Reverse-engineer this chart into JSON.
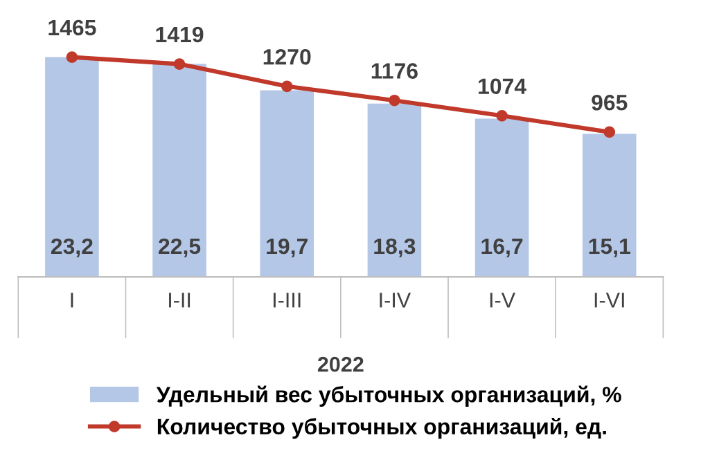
{
  "chart_data": {
    "type": "bar",
    "xlabel": "2022",
    "categories": [
      "I",
      "I-II",
      "I-III",
      "I-IV",
      "I-V",
      "I-VI"
    ],
    "series": [
      {
        "name": "Удельный вес убыточных организаций, %",
        "color": "#b4c7e7",
        "values": [
          23.2,
          22.5,
          19.7,
          18.3,
          16.7,
          15.1
        ],
        "value_labels": [
          "23,2",
          "22,5",
          "19,7",
          "18,3",
          "16,7",
          "15,1"
        ]
      },
      {
        "name": "Количество убыточных организаций, ед.",
        "type": "line",
        "axis": "y2",
        "color": "#c0392b",
        "marker": "circle",
        "values": [
          1465,
          1419,
          1270,
          1176,
          1074,
          965
        ],
        "value_labels": [
          "1465",
          "1419",
          "1270",
          "1176",
          "1074",
          "965"
        ]
      }
    ],
    "legend": "bottom",
    "grid": false,
    "tick_labels": "x"
  }
}
